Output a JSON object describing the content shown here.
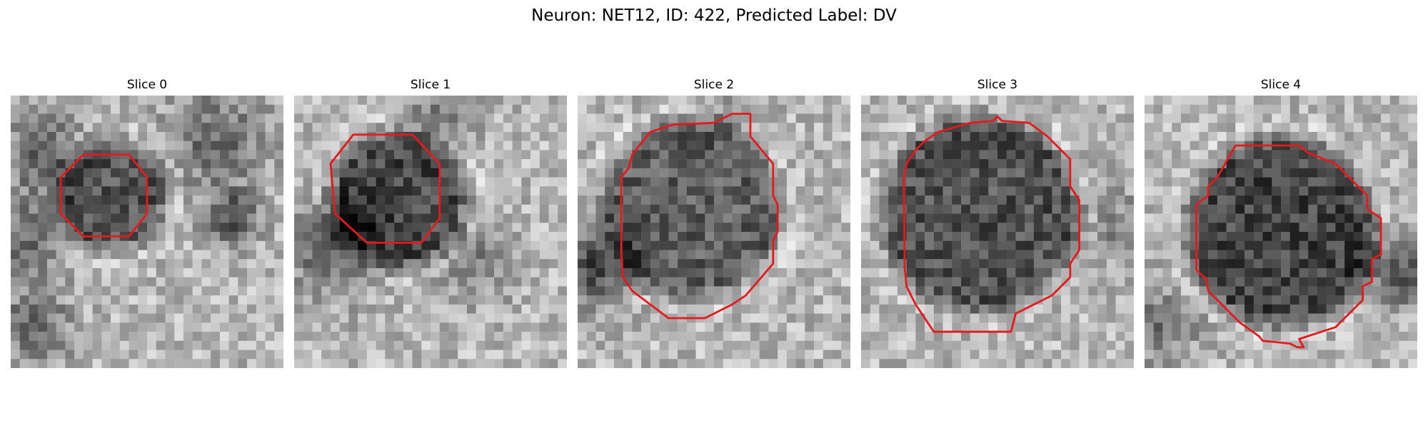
{
  "figure": {
    "title": "Neuron: NET12, ID: 422, Predicted Label: DV"
  },
  "slices": [
    {
      "title": "Slice 0",
      "pattern": "small-dark-cell-left-blobs"
    },
    {
      "title": "Slice 1",
      "pattern": "medium-dark-cell-lower-left-shadow"
    },
    {
      "title": "Slice 2",
      "pattern": "large-cell-lower-left-dark"
    },
    {
      "title": "Slice 3",
      "pattern": "large-dark-cell"
    },
    {
      "title": "Slice 4",
      "pattern": "large-dark-cell-right-shadow"
    }
  ],
  "colors": {
    "contour": "#e41a1c",
    "background": "#ffffff"
  },
  "image_style": "grayscale-30x30-pixel-grid-with-red-segmentation-outline"
}
